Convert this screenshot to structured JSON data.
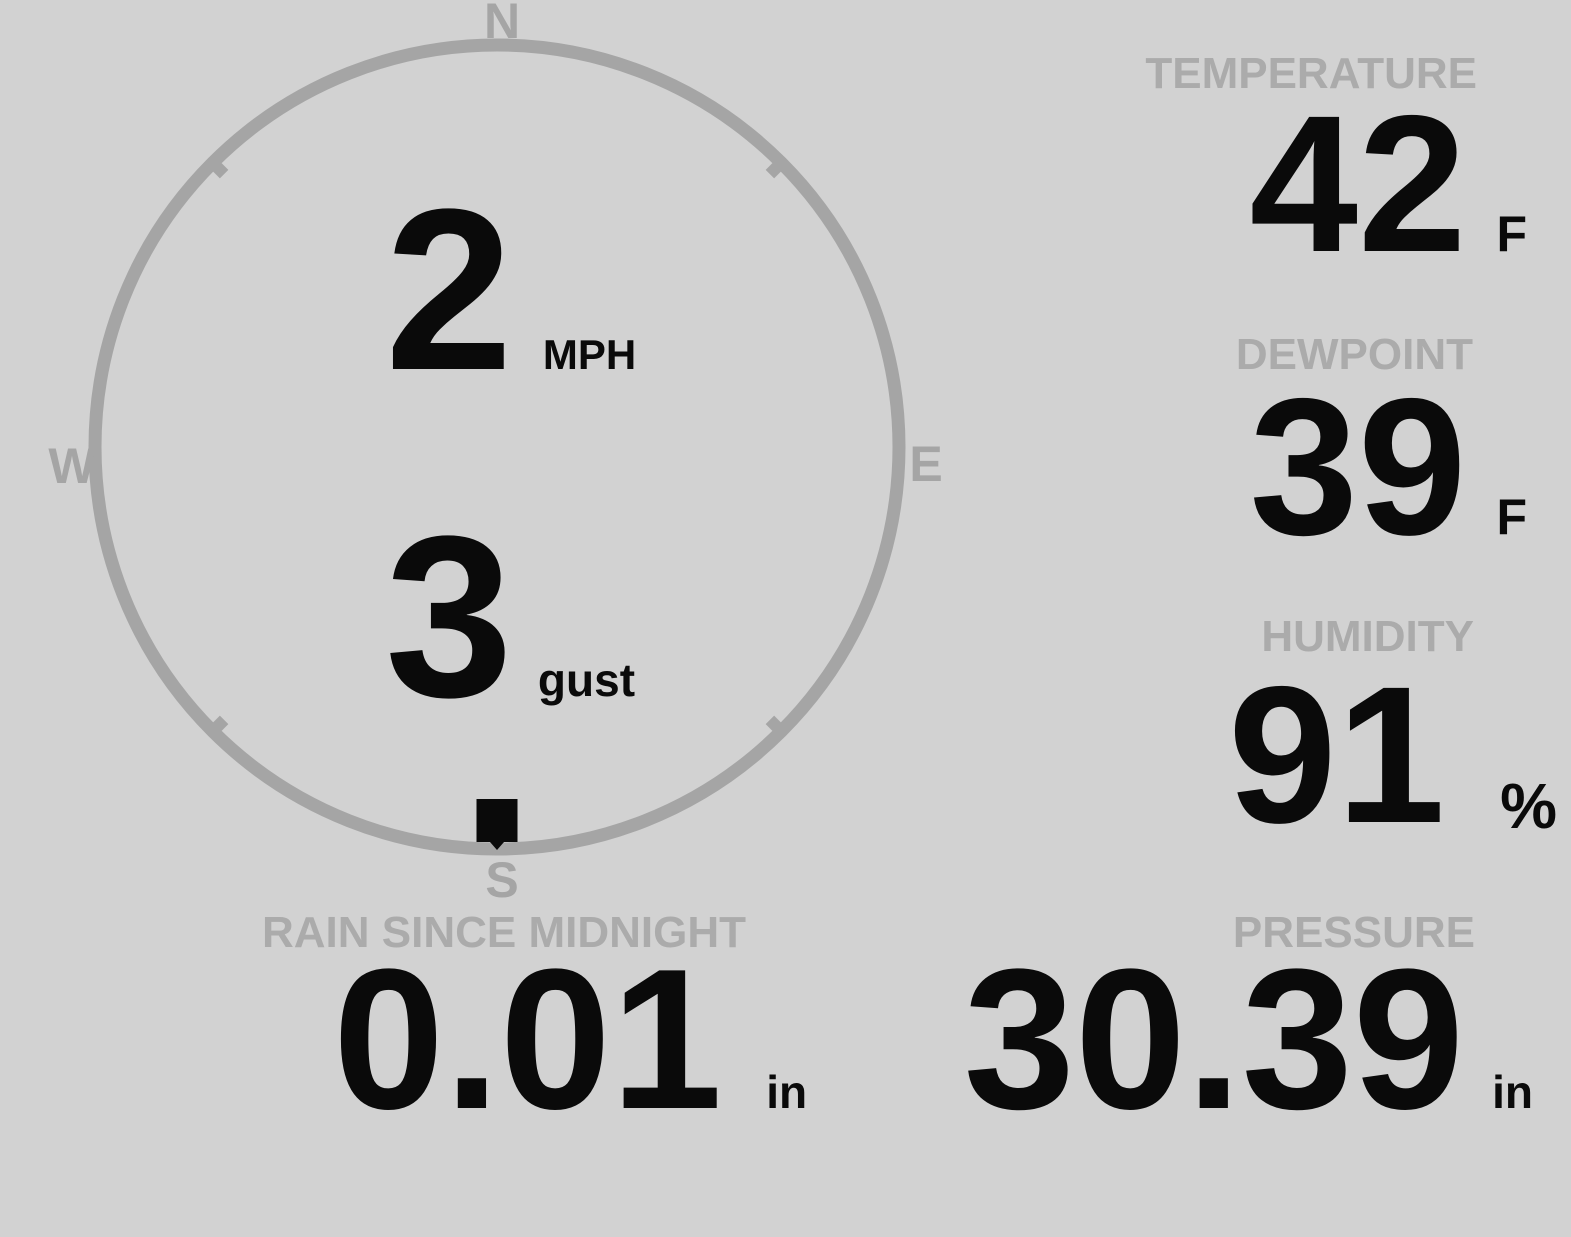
{
  "colors": {
    "bg": "#d2d2d2",
    "dial": "#a5a5a5",
    "label": "#ababab",
    "value": "#0a0a0a"
  },
  "compass": {
    "cardinals": {
      "n": "N",
      "e": "E",
      "s": "S",
      "w": "W"
    },
    "wind": {
      "speed": "2",
      "speed_unit": "MPH",
      "gust": "3",
      "gust_unit": "gust",
      "direction_deg": 180
    }
  },
  "metrics": {
    "temperature": {
      "label": "TEMPERATURE",
      "value": "42",
      "unit": "F"
    },
    "dewpoint": {
      "label": "DEWPOINT",
      "value": "39",
      "unit": "F"
    },
    "humidity": {
      "label": "HUMIDITY",
      "value": "91",
      "unit": "%"
    },
    "rain": {
      "label": "RAIN SINCE MIDNIGHT",
      "value": "0.01",
      "unit": "in"
    },
    "pressure": {
      "label": "PRESSURE",
      "value": "30.39",
      "unit": "in"
    }
  }
}
